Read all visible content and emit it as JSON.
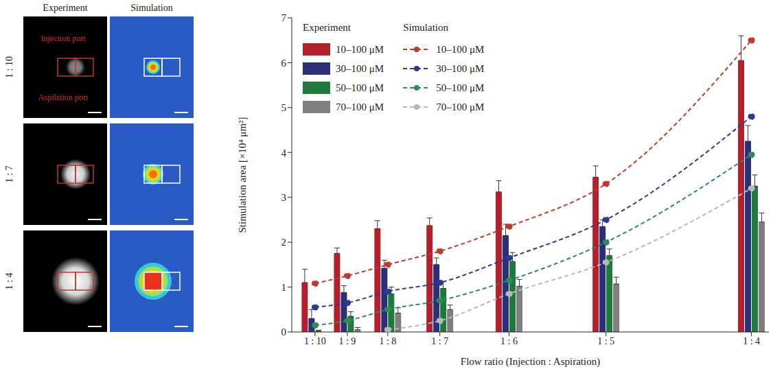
{
  "panels": {
    "column_titles": [
      "Experiment",
      "Simulation"
    ],
    "row_labels": [
      "1 : 10",
      "1 : 7",
      "1 : 4"
    ],
    "labels": [
      "Injection port",
      "Aspilation port"
    ]
  },
  "chart_data": {
    "type": "bar",
    "x_label": "Flow ratio (Injection : Aspiration)",
    "y_label": "Stimulation area [×10⁴ μm²]",
    "annotations": [
      "Experiment",
      "Simulation"
    ],
    "x": [
      0.1,
      0.1111,
      0.125,
      0.1429,
      0.1667,
      0.2,
      0.25
    ],
    "xlim": [
      0.092,
      0.256
    ],
    "xticks": [
      {
        "value": 0.1,
        "label": "1 : 10"
      },
      {
        "value": 0.1111,
        "label": "1 : 9"
      },
      {
        "value": 0.125,
        "label": "1 : 8"
      },
      {
        "value": 0.1429,
        "label": "1 : 7"
      },
      {
        "value": 0.1667,
        "label": "1 : 6"
      },
      {
        "value": 0.2,
        "label": "1 : 5"
      },
      {
        "value": 0.25,
        "label": "1 : 4"
      }
    ],
    "ylim": [
      0,
      7
    ],
    "yticks": [
      0,
      1,
      2,
      3,
      4,
      5,
      6,
      7
    ],
    "grid": false,
    "legend": "upper left",
    "series": [
      {
        "name": "10–100 μM",
        "type": "bar",
        "color": "#b3202c",
        "values": [
          1.1,
          1.75,
          2.3,
          2.37,
          3.12,
          3.45,
          6.05
        ],
        "error": [
          0.3,
          0.12,
          0.18,
          0.17,
          0.25,
          0.25,
          0.55
        ]
      },
      {
        "name": "30–100 μM",
        "type": "bar",
        "color": "#2b2e78",
        "values": [
          0.3,
          0.88,
          1.42,
          1.5,
          2.15,
          2.35,
          4.25
        ],
        "error": [
          0.2,
          0.15,
          0.18,
          0.15,
          0.25,
          0.15,
          0.35
        ]
      },
      {
        "name": "50–100 μM",
        "type": "bar",
        "color": "#1e7a3a",
        "values": [
          0.02,
          0.35,
          0.85,
          0.97,
          1.57,
          1.7,
          3.25
        ],
        "error": [
          0.02,
          0.1,
          0.15,
          0.15,
          0.2,
          0.15,
          0.25
        ]
      },
      {
        "name": "70–100 μM",
        "type": "bar",
        "color": "#7f7f7f",
        "values": [
          0,
          0.05,
          0.42,
          0.5,
          1.02,
          1.07,
          2.45
        ],
        "error": [
          0,
          0.05,
          0.12,
          0.1,
          0.15,
          0.15,
          0.2
        ]
      },
      {
        "name": "10–100 μM",
        "type": "line",
        "color": "#c0392b",
        "line_style": "dashed",
        "marker": "circle",
        "values": [
          1.08,
          1.25,
          1.5,
          1.8,
          2.35,
          3.3,
          6.5
        ]
      },
      {
        "name": "30–100 μM",
        "type": "line",
        "color": "#2c3a90",
        "line_style": "dashed",
        "marker": "circle",
        "values": [
          0.55,
          0.65,
          0.9,
          1.1,
          1.65,
          2.5,
          4.8
        ]
      },
      {
        "name": "50–100 μM",
        "type": "line",
        "color": "#2e8b57",
        "line_style": "dashed",
        "marker": "circle",
        "values": [
          0.15,
          0.25,
          0.5,
          0.7,
          1.15,
          2.0,
          3.95
        ]
      },
      {
        "name": "70–100 μM",
        "type": "line",
        "color": "#b8b8b8",
        "line_style": "dashed",
        "marker": "circle",
        "values": [
          null,
          null,
          0.05,
          0.25,
          0.85,
          1.55,
          3.2
        ]
      }
    ]
  }
}
